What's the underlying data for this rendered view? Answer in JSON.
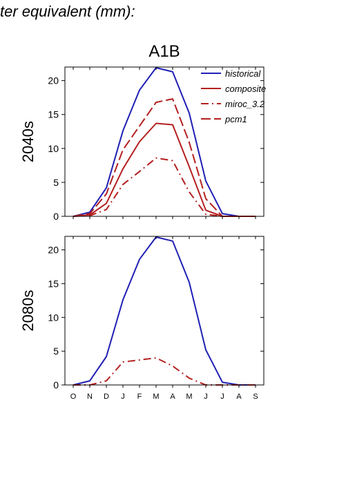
{
  "page": {
    "title": "ter equivalent (mm):"
  },
  "chart_data": [
    {
      "type": "line",
      "title": "A1B",
      "ylabel": "2040s",
      "xlabel": "",
      "categories": [
        "O",
        "N",
        "D",
        "J",
        "F",
        "M",
        "A",
        "M",
        "J",
        "J",
        "A",
        "S"
      ],
      "ylim": [
        0,
        22
      ],
      "yticks": [
        0,
        5,
        10,
        15,
        20
      ],
      "legend": "top-right",
      "series": [
        {
          "name": "historical",
          "color": "#1f1fb4",
          "dash": "solid",
          "values": [
            0.0,
            0.6,
            4.2,
            12.6,
            18.6,
            21.9,
            21.3,
            15.2,
            5.2,
            0.4,
            0.0,
            0.0
          ]
        },
        {
          "name": "composite",
          "color": "#b41f1f",
          "dash": "solid",
          "values": [
            0.0,
            0.2,
            1.9,
            7.0,
            11.0,
            13.7,
            13.5,
            7.3,
            0.9,
            0.0,
            0.0,
            0.0
          ]
        },
        {
          "name": "miroc_3.2",
          "color": "#b41f1f",
          "dash": "dashdot",
          "values": [
            0.0,
            0.1,
            1.0,
            4.7,
            6.6,
            8.6,
            8.2,
            3.6,
            0.3,
            0.0,
            0.0,
            0.0
          ]
        },
        {
          "name": "pcm1",
          "color": "#b41f1f",
          "dash": "dash",
          "values": [
            0.0,
            0.4,
            3.3,
            9.8,
            13.3,
            16.8,
            17.3,
            10.9,
            2.6,
            0.0,
            0.0,
            0.0
          ]
        }
      ]
    },
    {
      "type": "line",
      "title": "",
      "ylabel": "2080s",
      "xlabel": "",
      "categories": [
        "O",
        "N",
        "D",
        "J",
        "F",
        "M",
        "A",
        "M",
        "J",
        "J",
        "A",
        "S"
      ],
      "ylim": [
        0,
        22
      ],
      "yticks": [
        0,
        5,
        10,
        15,
        20
      ],
      "series": [
        {
          "name": "historical",
          "color": "#1f1fb4",
          "dash": "solid",
          "values": [
            0.0,
            0.6,
            4.2,
            12.6,
            18.6,
            21.9,
            21.3,
            15.2,
            5.2,
            0.4,
            0.0,
            0.0
          ]
        },
        {
          "name": "miroc_3.2",
          "color": "#b41f1f",
          "dash": "dashdot",
          "values": [
            0.0,
            0.0,
            0.6,
            3.4,
            3.7,
            4.0,
            2.8,
            1.0,
            0.0,
            0.0,
            0.0,
            0.0
          ]
        }
      ]
    }
  ]
}
